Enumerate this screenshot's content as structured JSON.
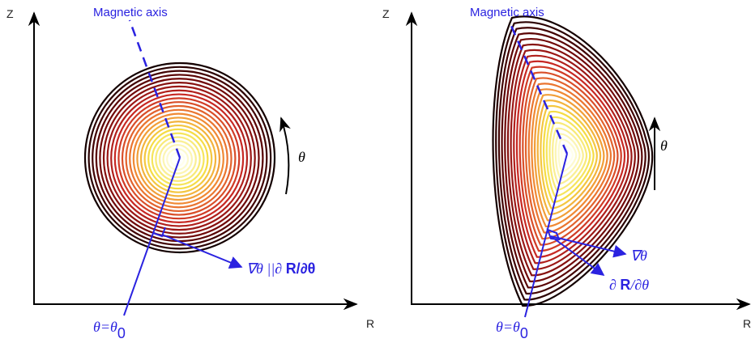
{
  "panels": [
    {
      "axis_labels": {
        "z": "Z",
        "r": "R"
      },
      "magnetic_axis": "Magnetic axis",
      "theta": "θ",
      "gradient_label": [
        "∇θ ||∂ ",
        "R/∂θ"
      ],
      "theta0": {
        "base": "θ=θ",
        "subscript": "0"
      }
    },
    {
      "axis_labels": {
        "z": "Z",
        "r": "R"
      },
      "magnetic_axis": "Magnetic axis",
      "theta": "θ",
      "gradient_label": "∇θ",
      "tangent_label": [
        "∂ ",
        "R",
        "/∂θ"
      ],
      "theta0": {
        "base": "θ=θ",
        "subscript": "0"
      }
    }
  ]
}
